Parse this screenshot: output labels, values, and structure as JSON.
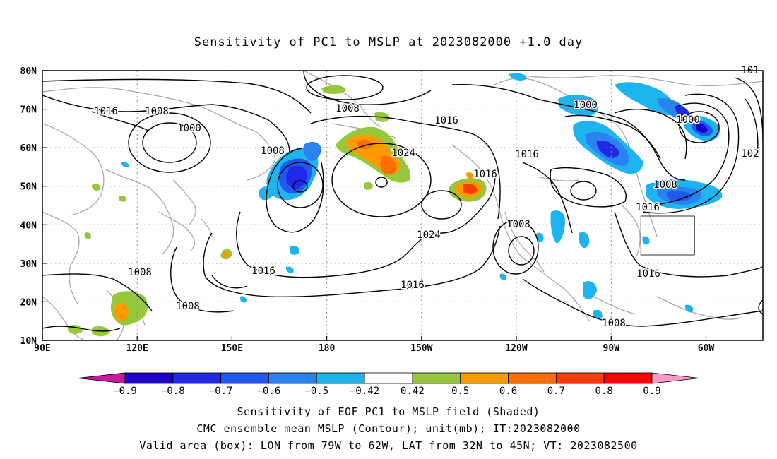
{
  "title": "Sensitivity of PC1 to MSLP at 2023082000 +1.0 day",
  "lat_labels": [
    "80N",
    "70N",
    "60N",
    "50N",
    "40N",
    "30N",
    "20N",
    "10N"
  ],
  "lon_labels": [
    "90E",
    "120E",
    "150E",
    "180",
    "150W",
    "120W",
    "90W",
    "60W"
  ],
  "contour_labels": [
    {
      "text": "1016",
      "name": "isobar-label"
    },
    {
      "text": "1008",
      "name": "isobar-label"
    },
    {
      "text": "1000",
      "name": "isobar-label"
    },
    {
      "text": "1008",
      "name": "isobar-label"
    },
    {
      "text": "1008",
      "name": "isobar-label"
    },
    {
      "text": "1016",
      "name": "isobar-label"
    },
    {
      "text": "1024",
      "name": "isobar-label"
    },
    {
      "text": "1016",
      "name": "isobar-label"
    },
    {
      "text": "1016",
      "name": "isobar-label"
    },
    {
      "text": "1000",
      "name": "isobar-label"
    },
    {
      "text": "1000",
      "name": "isobar-label"
    },
    {
      "text": "1008",
      "name": "isobar-label"
    },
    {
      "text": "1016",
      "name": "isobar-label"
    },
    {
      "text": "1024",
      "name": "isobar-label"
    },
    {
      "text": "1008",
      "name": "isobar-label"
    },
    {
      "text": "1016",
      "name": "isobar-label"
    },
    {
      "text": "1016",
      "name": "isobar-label"
    },
    {
      "text": "1008",
      "name": "isobar-label"
    },
    {
      "text": "1008",
      "name": "isobar-label"
    },
    {
      "text": "1016",
      "name": "isobar-label"
    },
    {
      "text": "1008",
      "name": "isobar-label"
    },
    {
      "text": "102",
      "name": "isobar-label"
    },
    {
      "text": "101",
      "name": "isobar-label"
    }
  ],
  "colorbar": {
    "colors": [
      "#c8189c",
      "#1a00c8",
      "#1e28e6",
      "#1e5af0",
      "#2882f0",
      "#1eb4f0",
      "#ffffff",
      "#96c83c",
      "#ff9a00",
      "#ff6e00",
      "#ff3c00",
      "#ff0000",
      "#ff9ac8"
    ],
    "labels": [
      "−0.9",
      "−0.8",
      "−0.7",
      "−0.6",
      "−0.5",
      "−0.42",
      "0.42",
      "0.5",
      "0.6",
      "0.7",
      "0.8",
      "0.9"
    ]
  },
  "footer": {
    "line1": "Sensitivity of EOF PC1 to MSLP field (Shaded)",
    "line2": "CMC ensemble mean MSLP (Contour); unit(mb); IT:2023082000",
    "line3": "Valid area (box): LON from 79W to 62W, LAT from 32N to 45N; VT: 2023082500"
  }
}
